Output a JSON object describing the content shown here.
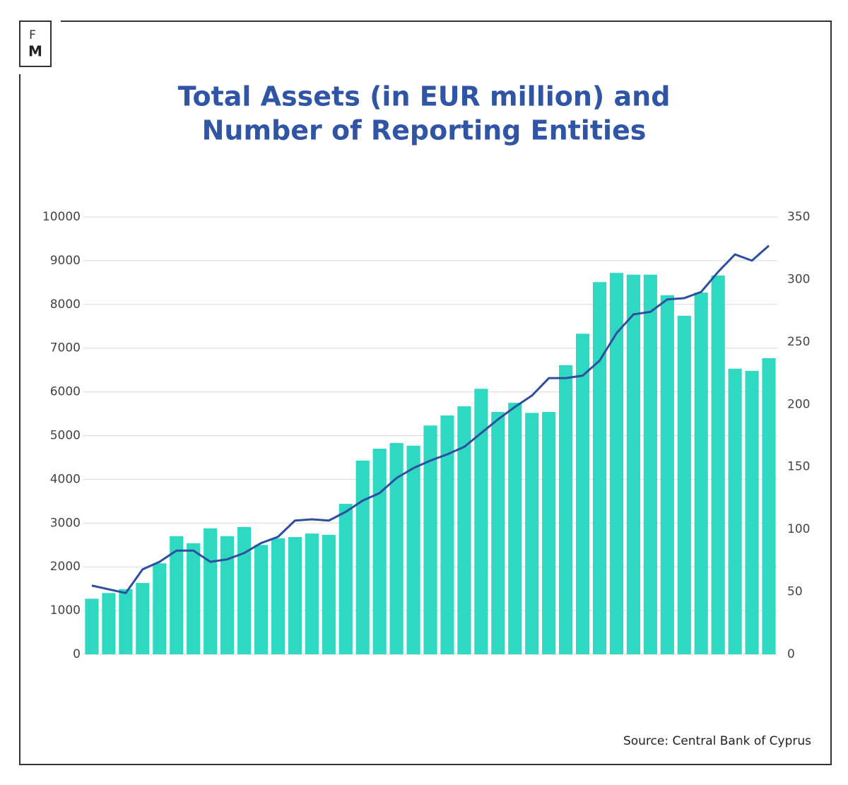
{
  "logo": {
    "top": "F",
    "bottom": "M"
  },
  "chart_data": {
    "type": "bar-line",
    "title": [
      "Total Assets (in EUR million) and",
      "Number of Reporting Entities"
    ],
    "source": "Source: Central Bank of Cyprus",
    "categories": [
      null,
      null,
      null,
      null,
      null,
      null,
      null,
      null,
      null,
      null,
      null,
      null,
      null,
      null,
      null,
      null,
      null,
      null,
      null,
      null,
      null,
      null,
      null,
      null,
      null,
      null,
      null,
      null,
      null,
      null,
      null,
      null,
      null,
      null,
      null,
      null,
      null,
      null,
      null,
      null,
      null
    ],
    "ylim": [
      0,
      10000
    ],
    "yticks": [
      0,
      1000,
      2000,
      3000,
      4000,
      5000,
      6000,
      7000,
      8000,
      9000,
      10000
    ],
    "y2lim": [
      0,
      350
    ],
    "y2ticks": [
      0,
      50,
      100,
      150,
      200,
      250,
      300,
      350
    ],
    "grid": true,
    "series": [
      {
        "type": "bar",
        "color": "#2fd8c0",
        "values": [
          1270,
          1400,
          1490,
          1630,
          2080,
          2700,
          2540,
          2880,
          2700,
          2910,
          2500,
          2650,
          2680,
          2760,
          2730,
          3440,
          4430,
          4700,
          4830,
          4770,
          5230,
          5460,
          5670,
          6070,
          5540,
          5750,
          5520,
          5540,
          6610,
          7330,
          8510,
          8720,
          8680,
          8680,
          8210,
          7740,
          8270,
          8660,
          6530,
          6480,
          6770
        ]
      },
      {
        "type": "line",
        "axis": "y2",
        "color": "#2e4fa0",
        "values": [
          55,
          52,
          49,
          68,
          74,
          83,
          83,
          74,
          76,
          81,
          89,
          94,
          107,
          108,
          107,
          114,
          123,
          129,
          141,
          149,
          155,
          160,
          166,
          177,
          188,
          198,
          207,
          221,
          221,
          223,
          235,
          257,
          272,
          274,
          284,
          285,
          290,
          306,
          320,
          315,
          327
        ]
      }
    ]
  }
}
